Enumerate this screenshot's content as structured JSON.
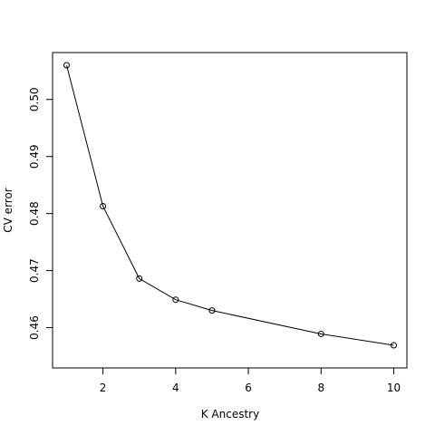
{
  "chart_data": {
    "type": "line",
    "xlabel": "K Ancestry",
    "ylabel": "CV error",
    "xlim": [
      1,
      10
    ],
    "ylim": [
      0.455,
      0.506
    ],
    "xticks": [
      2,
      4,
      6,
      8,
      10
    ],
    "yticks": [
      0.46,
      0.47,
      0.48,
      0.49,
      0.5
    ],
    "ytick_labels": [
      "0.46",
      "0.47",
      "0.48",
      "0.49",
      "0.50"
    ],
    "grid": false,
    "series": [
      {
        "x": [
          1,
          2,
          3,
          4,
          5,
          8,
          10
        ],
        "y": [
          0.506,
          0.4813,
          0.4686,
          0.4649,
          0.463,
          0.4589,
          0.4569
        ]
      }
    ]
  }
}
